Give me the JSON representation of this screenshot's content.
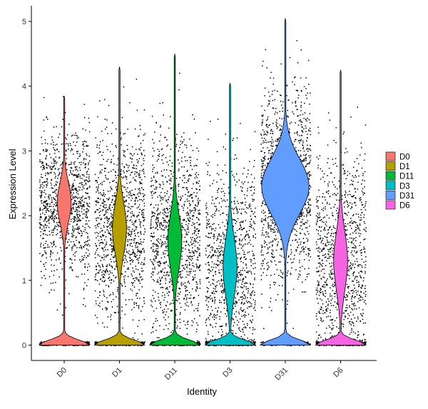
{
  "chart_data": {
    "type": "violin",
    "xlabel": "Identity",
    "ylabel": "Expression Level",
    "ylim": [
      -0.25,
      5.1
    ],
    "yticks": [
      0,
      1,
      2,
      3,
      4,
      5
    ],
    "categories": [
      "D0",
      "D1",
      "D11",
      "D3",
      "D31",
      "D6"
    ],
    "legend": {
      "position": "right",
      "title": ""
    },
    "series": [
      {
        "name": "D0",
        "color": "#F8766D",
        "max": 3.85,
        "zero_fraction": 0.3,
        "center": 2.2,
        "spread": 0.55
      },
      {
        "name": "D1",
        "color": "#B79F00",
        "max": 4.3,
        "zero_fraction": 0.25,
        "center": 1.8,
        "spread": 0.7
      },
      {
        "name": "D11",
        "color": "#00BA38",
        "max": 4.5,
        "zero_fraction": 0.25,
        "center": 1.6,
        "spread": 0.75
      },
      {
        "name": "D3",
        "color": "#00BFC4",
        "max": 4.05,
        "zero_fraction": 0.3,
        "center": 1.2,
        "spread": 0.8
      },
      {
        "name": "D31",
        "color": "#619CFF",
        "max": 5.05,
        "zero_fraction": 0.1,
        "center": 2.45,
        "spread": 0.75
      },
      {
        "name": "D6",
        "color": "#F564E3",
        "max": 4.25,
        "zero_fraction": 0.3,
        "center": 1.3,
        "spread": 0.8
      }
    ]
  }
}
